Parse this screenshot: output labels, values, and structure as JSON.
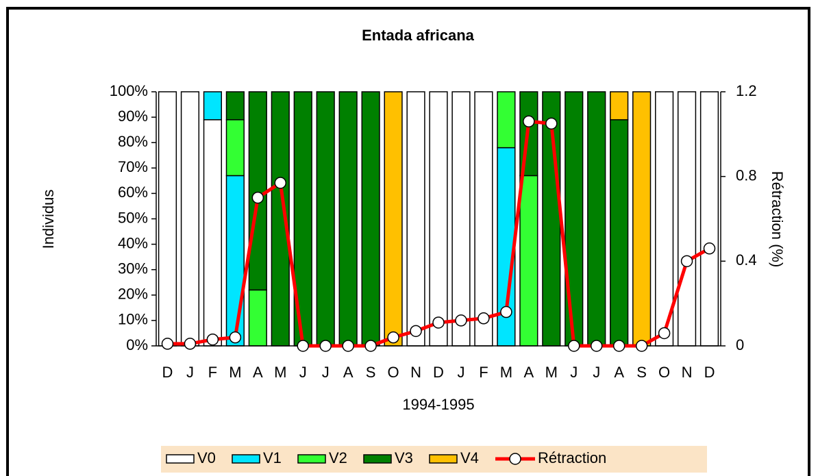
{
  "chart_data": {
    "type": "bar",
    "title": "Entada africana",
    "xlabel": "1994-1995",
    "ylabel": "Individus",
    "y2label": "Rétraction (%)",
    "stacked": true,
    "categories": [
      "D",
      "J",
      "F",
      "M",
      "A",
      "M",
      "J",
      "J",
      "A",
      "S",
      "O",
      "N",
      "D",
      "J",
      "F",
      "M",
      "A",
      "M",
      "J",
      "J",
      "A",
      "S",
      "O",
      "N",
      "D"
    ],
    "ylim": [
      0,
      100
    ],
    "yticks": [
      {
        "value": 0,
        "label": "0%"
      },
      {
        "value": 10,
        "label": "10%"
      },
      {
        "value": 20,
        "label": "20%"
      },
      {
        "value": 30,
        "label": "30%"
      },
      {
        "value": 40,
        "label": "40%"
      },
      {
        "value": 50,
        "label": "50%"
      },
      {
        "value": 60,
        "label": "60%"
      },
      {
        "value": 70,
        "label": "70%"
      },
      {
        "value": 80,
        "label": "80%"
      },
      {
        "value": 90,
        "label": "90%"
      },
      {
        "value": 100,
        "label": "100%"
      }
    ],
    "y2lim": [
      0,
      1.2
    ],
    "y2ticks": [
      0,
      0.4,
      0.8,
      1.2
    ],
    "series": [
      {
        "name": "V0",
        "color": "#ffffff",
        "values": [
          100,
          100,
          89,
          0,
          0,
          0,
          0,
          0,
          0,
          0,
          0,
          100,
          100,
          100,
          100,
          0,
          0,
          0,
          0,
          0,
          0,
          0,
          100,
          100,
          100
        ]
      },
      {
        "name": "V1",
        "color": "#00e5ff",
        "values": [
          0,
          0,
          11,
          67,
          0,
          0,
          0,
          0,
          0,
          0,
          0,
          0,
          0,
          0,
          0,
          78,
          0,
          0,
          0,
          0,
          0,
          0,
          0,
          0,
          0
        ]
      },
      {
        "name": "V2",
        "color": "#33ff33",
        "values": [
          0,
          0,
          0,
          22,
          22,
          0,
          0,
          0,
          0,
          0,
          0,
          0,
          0,
          0,
          0,
          22,
          67,
          0,
          0,
          0,
          0,
          0,
          0,
          0,
          0
        ]
      },
      {
        "name": "V3",
        "color": "#008000",
        "values": [
          0,
          0,
          0,
          11,
          78,
          100,
          100,
          100,
          100,
          100,
          0,
          0,
          0,
          0,
          0,
          0,
          33,
          100,
          100,
          100,
          89,
          0,
          0,
          0,
          0
        ]
      },
      {
        "name": "V4",
        "color": "#ffc000",
        "values": [
          0,
          0,
          0,
          0,
          0,
          0,
          0,
          0,
          0,
          0,
          100,
          0,
          0,
          0,
          0,
          0,
          0,
          0,
          0,
          0,
          11,
          100,
          0,
          0,
          0
        ]
      },
      {
        "name": "Rétraction",
        "color": "#ff0000",
        "type": "line",
        "axis": "y2",
        "values": [
          0.01,
          0.01,
          0.03,
          0.04,
          0.7,
          0.77,
          0,
          0,
          0,
          0,
          0.04,
          0.07,
          0.11,
          0.12,
          0.13,
          0.16,
          1.06,
          1.05,
          0,
          0,
          0,
          0,
          0.06,
          0.4,
          0.46
        ]
      }
    ],
    "legend_position": "bottom"
  }
}
